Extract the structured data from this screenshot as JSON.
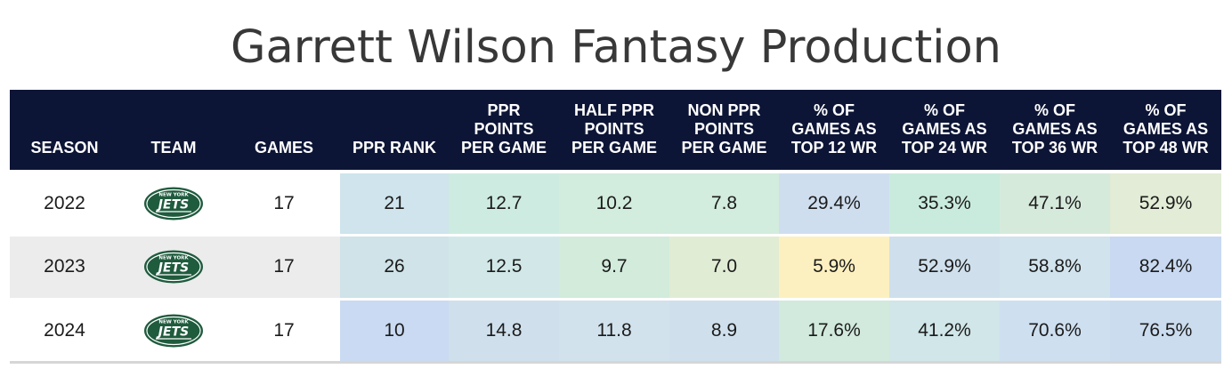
{
  "title": "Garrett Wilson Fantasy Production",
  "columns": [
    [
      "SEASON"
    ],
    [
      "TEAM"
    ],
    [
      "GAMES"
    ],
    [
      "PPR RANK"
    ],
    [
      "PPR",
      "POINTS",
      "PER GAME"
    ],
    [
      "HALF PPR",
      "POINTS",
      "PER GAME"
    ],
    [
      "NON PPR",
      "POINTS",
      "PER GAME"
    ],
    [
      "% OF",
      "GAMES AS",
      "TOP 12 WR"
    ],
    [
      "% OF",
      "GAMES AS",
      "TOP 24 WR"
    ],
    [
      "% OF",
      "GAMES AS",
      "TOP 36 WR"
    ],
    [
      "% OF",
      "GAMES AS",
      "TOP 48 WR"
    ]
  ],
  "team_logo": {
    "icon": "new-york-jets-logo",
    "text_top": "NEW YORK",
    "text_main": "JETS",
    "color": "#1f5b3d"
  },
  "rows": [
    {
      "season": "2022",
      "games": "17",
      "cells": [
        "21",
        "12.7",
        "10.2",
        "7.8",
        "29.4%",
        "35.3%",
        "47.1%",
        "52.9%"
      ],
      "colors": [
        "#cfe4ec",
        "#cdebe1",
        "#d2ecdd",
        "#d2ecdd",
        "#cfdeef",
        "#c9ebdd",
        "#d6eadc",
        "#e2ecd6"
      ]
    },
    {
      "season": "2023",
      "games": "17",
      "cells": [
        "26",
        "12.5",
        "9.7",
        "7.0",
        "5.9%",
        "52.9%",
        "58.8%",
        "82.4%"
      ],
      "colors": [
        "#cfe3e8",
        "#d2e8e8",
        "#d2ebdb",
        "#e1ecd5",
        "#fdf0c0",
        "#cfe0ec",
        "#d1e3ec",
        "#c8d9f1"
      ]
    },
    {
      "season": "2024",
      "games": "17",
      "cells": [
        "10",
        "14.8",
        "11.8",
        "8.9",
        "17.6%",
        "41.2%",
        "70.6%",
        "76.5%"
      ],
      "colors": [
        "#c9daf2",
        "#cfe0ec",
        "#d1e2ec",
        "#cfe0ec",
        "#d1eadd",
        "#d0e6e8",
        "#cedff0",
        "#cbdcef"
      ]
    }
  ]
}
